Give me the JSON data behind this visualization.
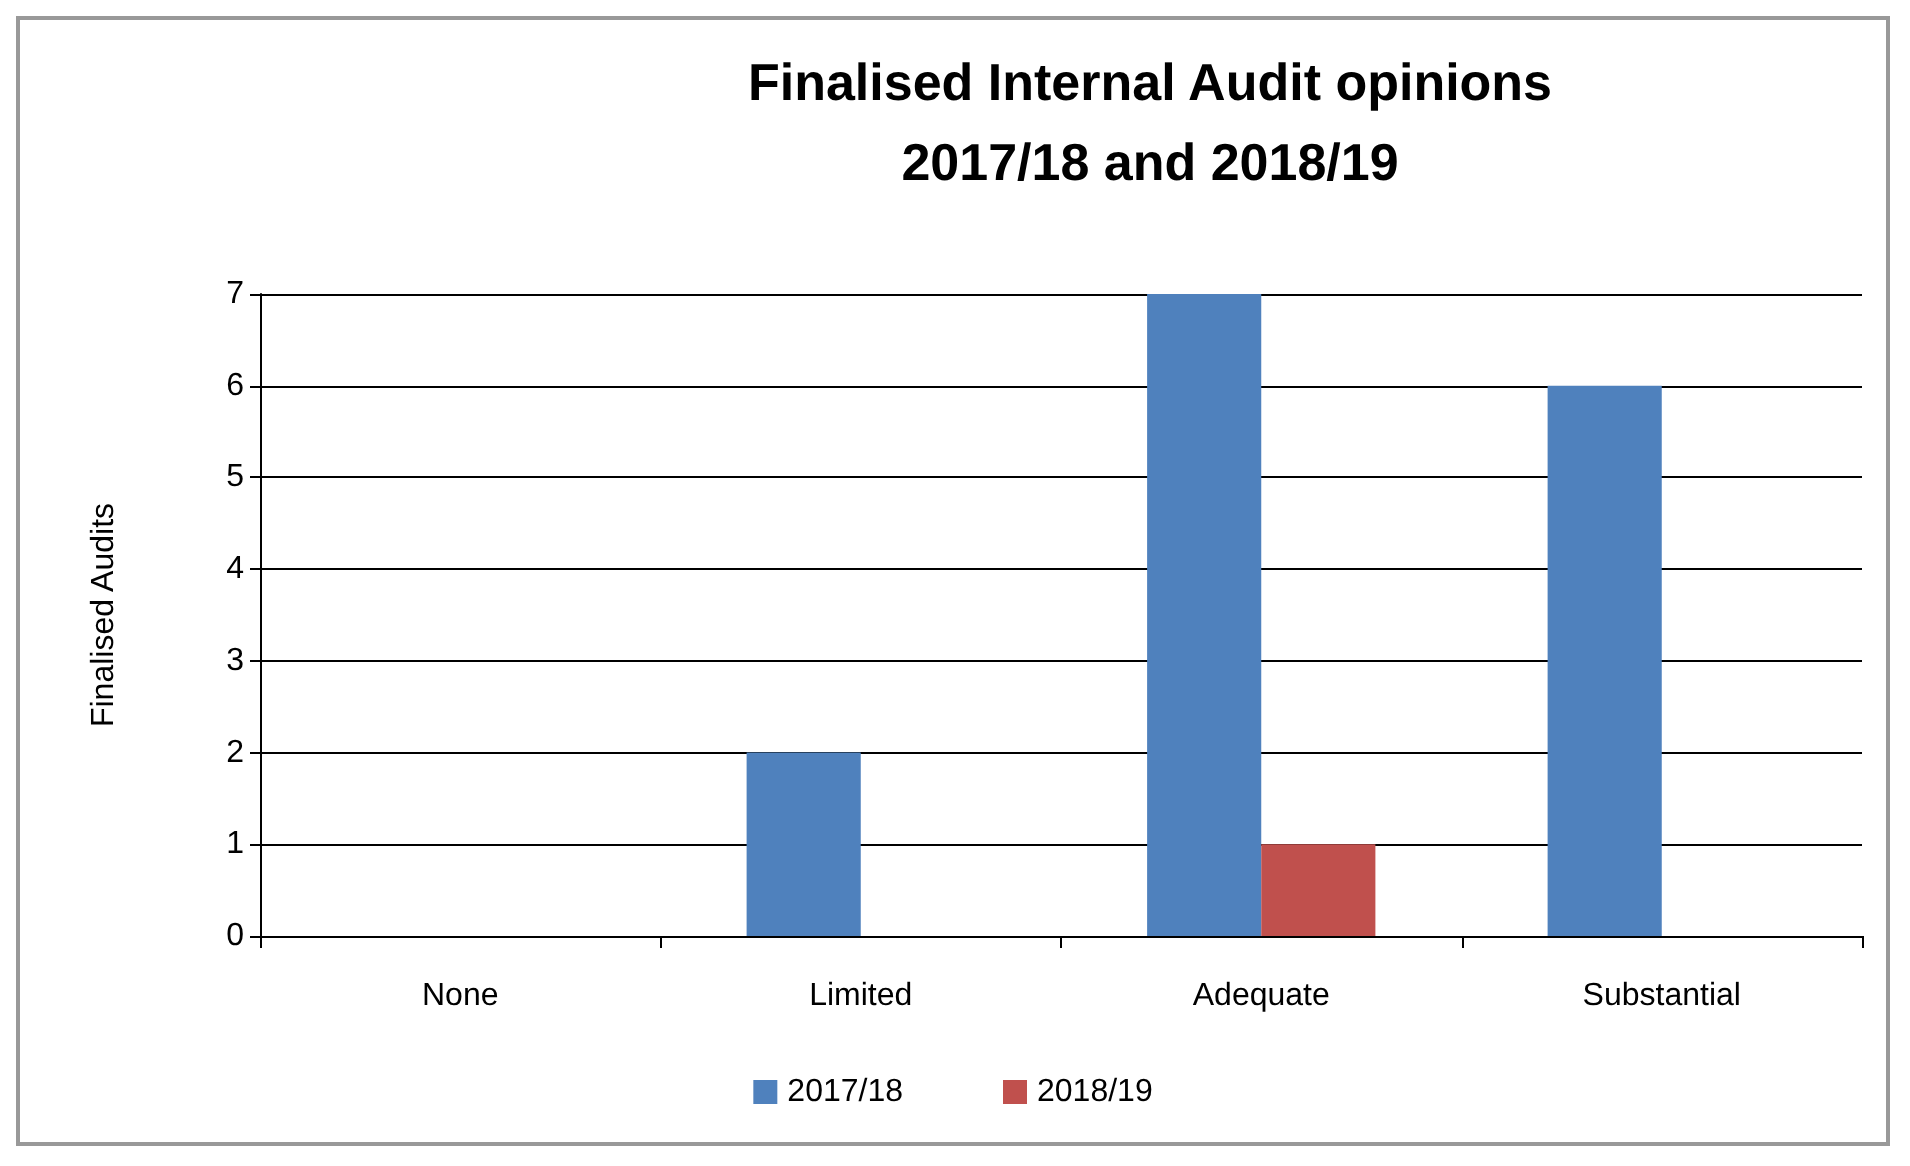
{
  "chart_data": {
    "type": "bar",
    "title": "Finalised Internal Audit opinions\n2017/18 and 2018/19",
    "ylabel": "Finalised Audits",
    "categories": [
      "None",
      "Limited",
      "Adequate",
      "Substantial"
    ],
    "series": [
      {
        "name": "2017/18",
        "color": "#4f81bd",
        "values": [
          0,
          2,
          7,
          6
        ]
      },
      {
        "name": "2018/19",
        "color": "#c0504d",
        "values": [
          0,
          0,
          1,
          0
        ]
      }
    ],
    "ylim": [
      0,
      7
    ],
    "yticks": [
      0,
      1,
      2,
      3,
      4,
      5,
      6,
      7
    ],
    "grid": "y",
    "legend": "bottom"
  }
}
